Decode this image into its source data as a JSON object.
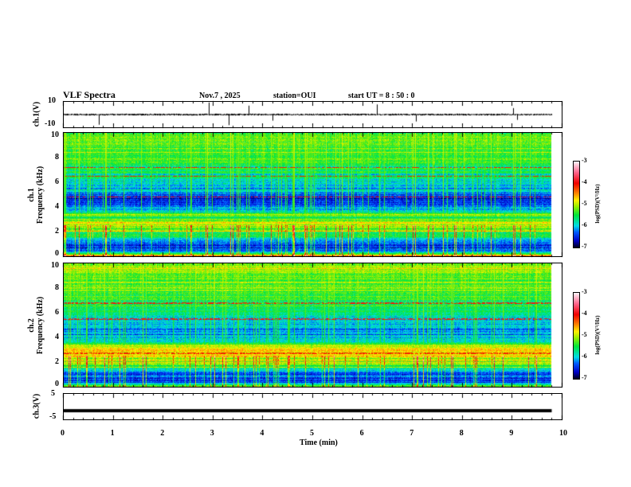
{
  "header": {
    "title": "VLF Spectra",
    "date": "Nov.7 , 2025",
    "station": "station=OUI",
    "start": "start  UT =   8  : 50 : 0"
  },
  "chart_data": [
    {
      "type": "line",
      "name": "ch1",
      "ylabel": "ch.1(V)",
      "ylim": [
        -10,
        10
      ],
      "yticks": [
        "10",
        "-10"
      ],
      "baseline": 0,
      "data_end_min": 9.8,
      "spikes": [
        {
          "t": 0.72,
          "v": -2.5
        },
        {
          "t": 2.93,
          "v": 3
        },
        {
          "t": 3.32,
          "v": -2.6
        },
        {
          "t": 3.72,
          "v": 2.2
        },
        {
          "t": 4.2,
          "v": -1.5
        },
        {
          "t": 6.3,
          "v": 2.5
        },
        {
          "t": 7.07,
          "v": -1.7
        },
        {
          "t": 9.02,
          "v": 1.6
        },
        {
          "t": 9.1,
          "v": -1.3
        }
      ]
    },
    {
      "type": "heatmap",
      "name": "ch1-spectrogram",
      "ylabel": "ch.1\nFrequency (kHz)",
      "ylim": [
        0,
        10
      ],
      "yticks": [
        "0",
        "2",
        "4",
        "6",
        "8",
        "10"
      ],
      "band_profile": {
        "freq_khz": [
          0,
          0.3,
          0.6,
          1.2,
          1.6,
          2.0,
          2.6,
          3.2,
          3.6,
          4.0,
          4.6,
          5.2,
          6.0,
          7.0,
          8.0,
          10
        ],
        "log_psd": [
          -4.5,
          -6.2,
          -6.6,
          -6.3,
          -5.6,
          -5.2,
          -4.9,
          -5.2,
          -5.8,
          -6.3,
          -6.7,
          -6.2,
          -5.8,
          -5.6,
          -5.4,
          -5.3
        ]
      },
      "lines_khz": [
        7.2,
        6.5,
        4.8
      ],
      "colorbar": {
        "label": "log(PSD)(V²/Hz)",
        "ticks": [
          "-3",
          "-4",
          "-5",
          "-6",
          "-7"
        ],
        "range": [
          -7,
          -3
        ]
      }
    },
    {
      "type": "heatmap",
      "name": "ch2-spectrogram",
      "ylabel": "ch.2\nFrequency (kHz)",
      "ylim": [
        0,
        10
      ],
      "yticks": [
        "0",
        "2",
        "4",
        "6",
        "8",
        "10"
      ],
      "band_profile": {
        "freq_khz": [
          0,
          0.3,
          0.6,
          1.2,
          1.6,
          2.0,
          2.6,
          3.2,
          3.6,
          4.0,
          4.6,
          5.2,
          6.0,
          7.0,
          8.0,
          10
        ],
        "log_psd": [
          -4.8,
          -6.3,
          -6.5,
          -6.2,
          -5.4,
          -5.0,
          -4.6,
          -4.8,
          -5.6,
          -6.1,
          -6.3,
          -6.0,
          -5.7,
          -5.5,
          -5.3,
          -5.1
        ]
      },
      "lines_khz": [
        6.8,
        5.5,
        2.7
      ],
      "colorbar": {
        "label": "log(PSD)(V²/Hz)",
        "ticks": [
          "-3",
          "-4",
          "-5",
          "-6",
          "-7"
        ],
        "range": [
          -7,
          -3
        ]
      }
    },
    {
      "type": "line",
      "name": "ch3",
      "ylabel": "ch.3(V)",
      "ylim": [
        -5,
        5
      ],
      "yticks": [
        "5",
        "-5"
      ],
      "baseline": -1.6,
      "data_end_min": 9.8
    },
    {
      "type": "axis",
      "xlabel": "Time (min)",
      "xlim": [
        0,
        10
      ],
      "xticks": [
        "0",
        "1",
        "2",
        "3",
        "4",
        "5",
        "6",
        "7",
        "8",
        "9",
        "10"
      ]
    }
  ],
  "colors": {
    "frame": "#000000"
  }
}
